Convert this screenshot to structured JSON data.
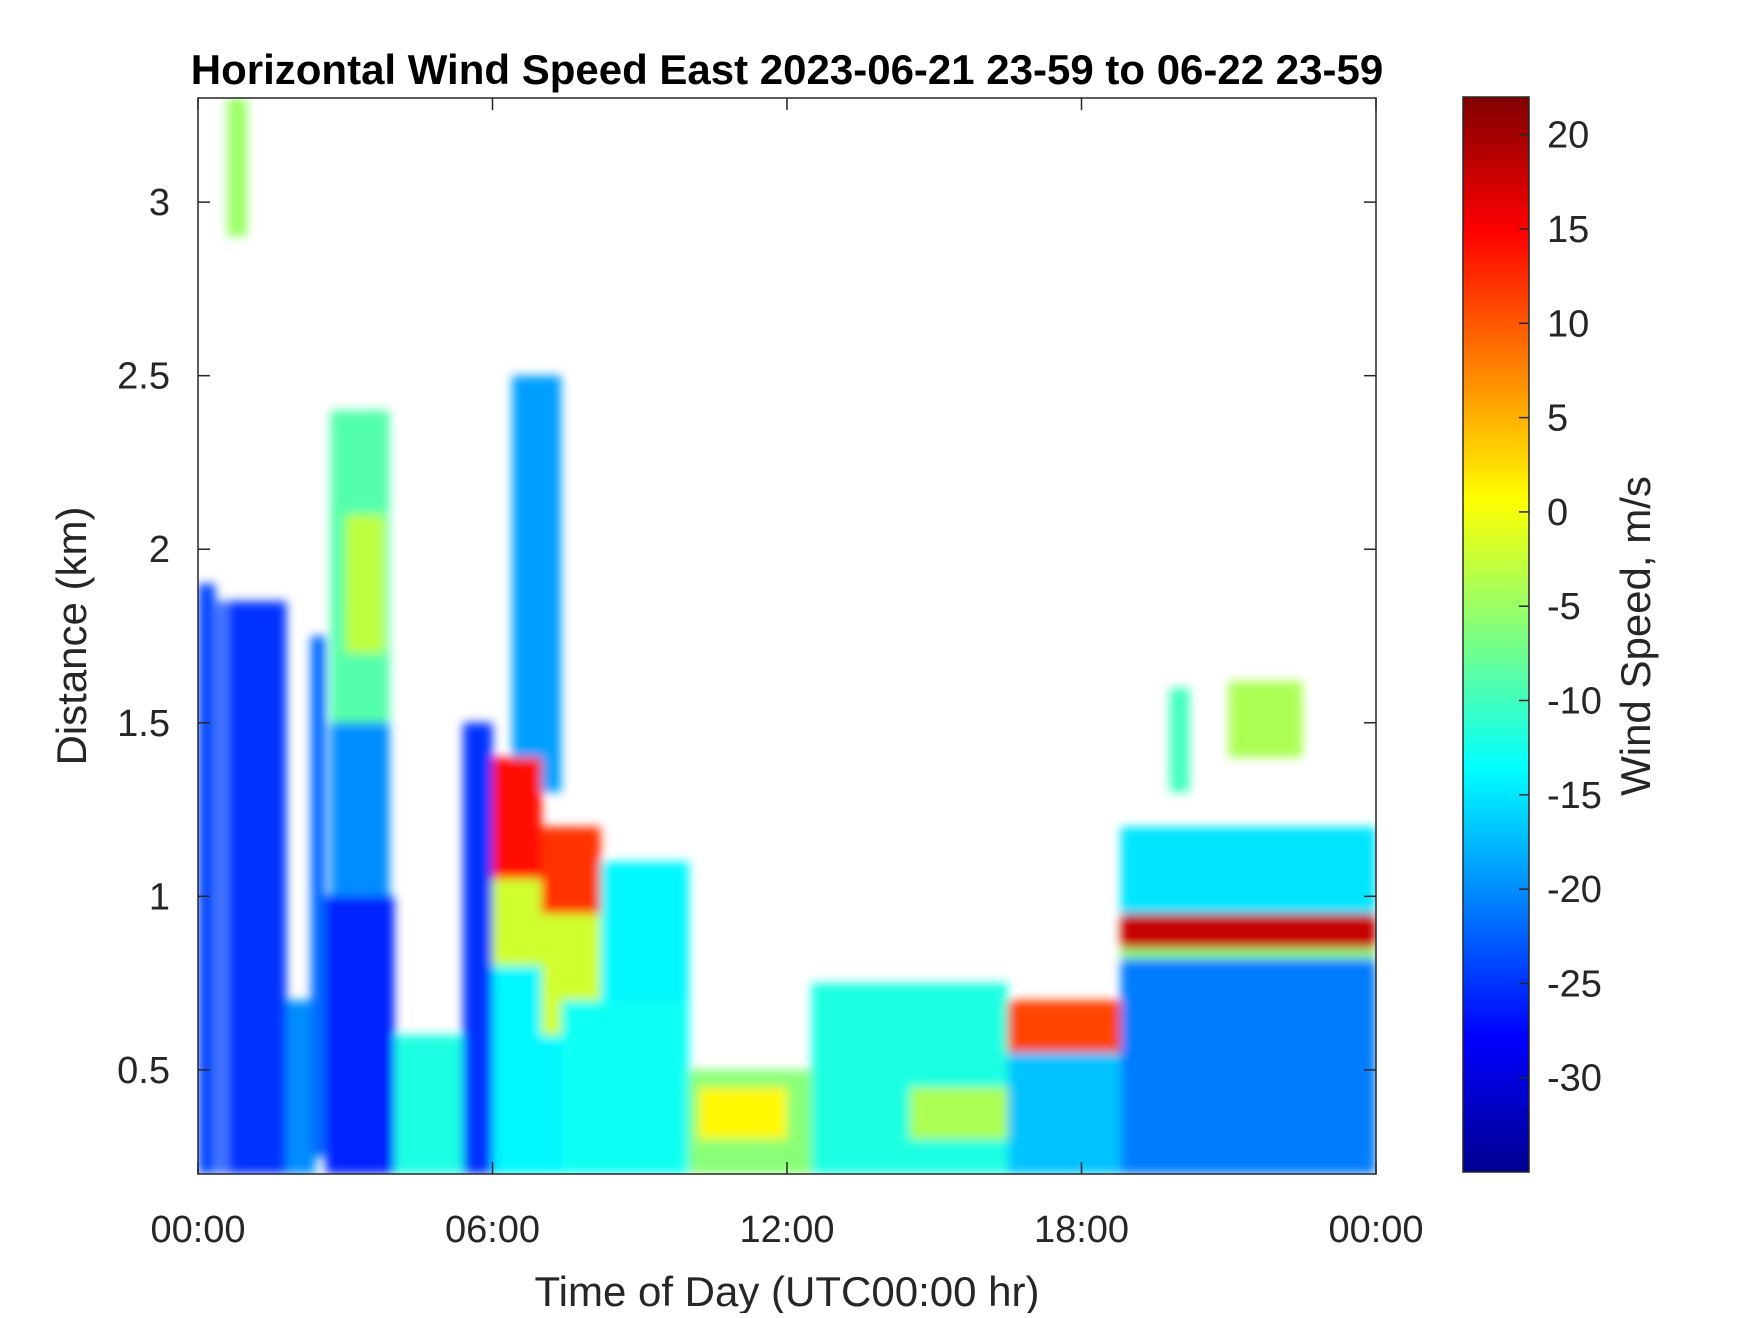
{
  "chart_data": {
    "type": "heatmap",
    "title": "Horizontal Wind Speed East 2023-06-21 23-59 to 06-22 23-59",
    "xlabel": "Time of Day (UTC00:00 hr)",
    "ylabel": "Distance (km)",
    "xlim": [
      0,
      24
    ],
    "ylim": [
      0.2,
      3.3
    ],
    "x_ticks": [
      {
        "value": 0,
        "label": "00:00"
      },
      {
        "value": 6,
        "label": "06:00"
      },
      {
        "value": 12,
        "label": "12:00"
      },
      {
        "value": 18,
        "label": "18:00"
      },
      {
        "value": 24,
        "label": "00:00"
      }
    ],
    "y_ticks": [
      {
        "value": 0.5,
        "label": "0.5"
      },
      {
        "value": 1,
        "label": "1"
      },
      {
        "value": 1.5,
        "label": "1.5"
      },
      {
        "value": 2,
        "label": "2"
      },
      {
        "value": 2.5,
        "label": "2.5"
      },
      {
        "value": 3,
        "label": "3"
      }
    ],
    "colorbar": {
      "label": "Wind Speed, m/s",
      "colormap": "jet",
      "range": [
        -35,
        22
      ],
      "ticks": [
        {
          "value": 20,
          "label": "20"
        },
        {
          "value": 15,
          "label": "15"
        },
        {
          "value": 10,
          "label": "10"
        },
        {
          "value": 5,
          "label": "5"
        },
        {
          "value": 0,
          "label": "0"
        },
        {
          "value": -5,
          "label": "-5"
        },
        {
          "value": -10,
          "label": "-10"
        },
        {
          "value": -15,
          "label": "-15"
        },
        {
          "value": -20,
          "label": "-20"
        },
        {
          "value": -25,
          "label": "-25"
        },
        {
          "value": -30,
          "label": "-30"
        }
      ]
    },
    "regions": [
      {
        "x": [
          0.0,
          0.35
        ],
        "y": [
          0.2,
          1.9
        ],
        "value": -24
      },
      {
        "x": [
          0.4,
          0.55
        ],
        "y": [
          0.2,
          1.85
        ],
        "value": -24
      },
      {
        "x": [
          0.6,
          1.8
        ],
        "y": [
          0.2,
          1.85
        ],
        "value": -25
      },
      {
        "x": [
          1.8,
          2.4
        ],
        "y": [
          0.2,
          0.7
        ],
        "value": -20
      },
      {
        "x": [
          2.3,
          2.6
        ],
        "y": [
          0.25,
          1.75
        ],
        "value": -22
      },
      {
        "x": [
          2.6,
          4.0
        ],
        "y": [
          0.2,
          1.0
        ],
        "value": -26
      },
      {
        "x": [
          2.7,
          3.9
        ],
        "y": [
          1.0,
          1.8
        ],
        "value": -20
      },
      {
        "x": [
          2.7,
          3.9
        ],
        "y": [
          1.5,
          2.4
        ],
        "value": -9
      },
      {
        "x": [
          3.0,
          3.8
        ],
        "y": [
          1.7,
          2.1
        ],
        "value": -3
      },
      {
        "x": [
          0.6,
          1.0
        ],
        "y": [
          2.9,
          3.3
        ],
        "value": -5
      },
      {
        "x": [
          4.0,
          5.4
        ],
        "y": [
          0.2,
          0.6
        ],
        "value": -12
      },
      {
        "x": [
          5.4,
          6.0
        ],
        "y": [
          0.2,
          1.5
        ],
        "value": -25
      },
      {
        "x": [
          6.0,
          7.4
        ],
        "y": [
          0.2,
          0.9
        ],
        "value": -14
      },
      {
        "x": [
          6.4,
          7.4
        ],
        "y": [
          1.3,
          2.5
        ],
        "value": -19
      },
      {
        "x": [
          6.0,
          7.0
        ],
        "y": [
          0.8,
          1.3
        ],
        "value": -2
      },
      {
        "x": [
          6.0,
          7.0
        ],
        "y": [
          1.05,
          1.4
        ],
        "value": 14
      },
      {
        "x": [
          7.0,
          8.2
        ],
        "y": [
          0.9,
          1.2
        ],
        "value": 12
      },
      {
        "x": [
          7.0,
          8.5
        ],
        "y": [
          0.6,
          0.95
        ],
        "value": -2
      },
      {
        "x": [
          7.4,
          10.0
        ],
        "y": [
          0.2,
          0.7
        ],
        "value": -13
      },
      {
        "x": [
          8.2,
          10.0
        ],
        "y": [
          0.7,
          1.1
        ],
        "value": -14
      },
      {
        "x": [
          10.0,
          12.5
        ],
        "y": [
          0.2,
          0.5
        ],
        "value": -6
      },
      {
        "x": [
          10.2,
          12.0
        ],
        "y": [
          0.3,
          0.45
        ],
        "value": 1
      },
      {
        "x": [
          12.5,
          16.5
        ],
        "y": [
          0.2,
          0.75
        ],
        "value": -12
      },
      {
        "x": [
          14.5,
          16.5
        ],
        "y": [
          0.3,
          0.45
        ],
        "value": -4
      },
      {
        "x": [
          16.5,
          18.8
        ],
        "y": [
          0.2,
          0.7
        ],
        "value": -17
      },
      {
        "x": [
          16.5,
          18.8
        ],
        "y": [
          0.55,
          0.7
        ],
        "value": 11
      },
      {
        "x": [
          18.8,
          24.0
        ],
        "y": [
          0.2,
          0.82
        ],
        "value": -21
      },
      {
        "x": [
          18.8,
          24.0
        ],
        "y": [
          0.82,
          0.95
        ],
        "value": -6
      },
      {
        "x": [
          18.8,
          24.0
        ],
        "y": [
          0.85,
          0.98
        ],
        "value": 18
      },
      {
        "x": [
          18.8,
          24.0
        ],
        "y": [
          0.95,
          1.2
        ],
        "value": -15
      },
      {
        "x": [
          21.0,
          22.5
        ],
        "y": [
          1.4,
          1.62
        ],
        "value": -4
      },
      {
        "x": [
          19.8,
          20.2
        ],
        "y": [
          1.3,
          1.6
        ],
        "value": -10
      }
    ]
  }
}
